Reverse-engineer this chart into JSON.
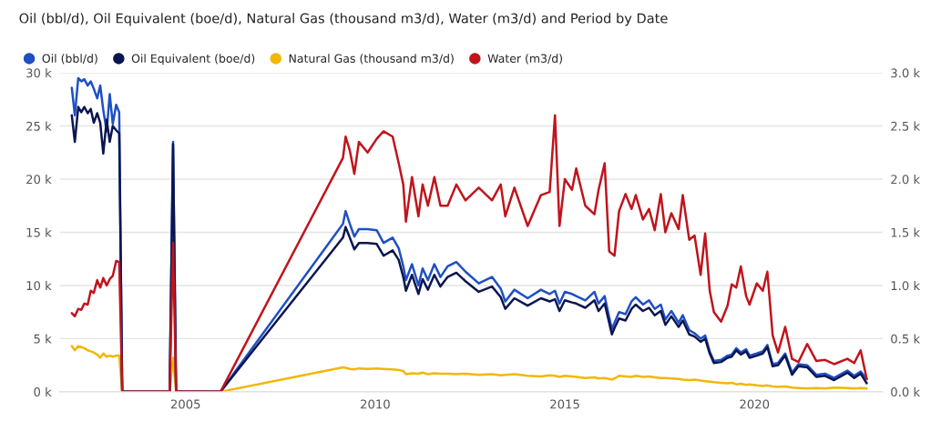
{
  "chart_data": {
    "type": "line",
    "title": "Oil (bbl/d), Oil Equivalent (boe/d), Natural Gas (thousand m3/d), Water (m3/d) and Period by Date",
    "x": [
      2002.0,
      2002.08,
      2002.17,
      2002.25,
      2002.33,
      2002.42,
      2002.5,
      2002.58,
      2002.67,
      2002.75,
      2002.83,
      2002.92,
      2003.0,
      2003.08,
      2003.17,
      2003.25,
      2003.33,
      2004.58,
      2004.67,
      2004.75,
      2005.92,
      2009.15,
      2009.22,
      2009.33,
      2009.45,
      2009.57,
      2009.8,
      2010.04,
      2010.22,
      2010.46,
      2010.62,
      2010.74,
      2010.81,
      2010.97,
      2011.14,
      2011.25,
      2011.39,
      2011.56,
      2011.72,
      2011.91,
      2012.14,
      2012.38,
      2012.73,
      2013.08,
      2013.31,
      2013.43,
      2013.67,
      2014.02,
      2014.37,
      2014.6,
      2014.74,
      2014.86,
      2015.0,
      2015.19,
      2015.3,
      2015.54,
      2015.78,
      2015.89,
      2016.05,
      2016.17,
      2016.24,
      2016.31,
      2016.43,
      2016.6,
      2016.76,
      2016.87,
      2017.06,
      2017.22,
      2017.37,
      2017.53,
      2017.65,
      2017.81,
      2018.0,
      2018.11,
      2018.28,
      2018.42,
      2018.58,
      2018.7,
      2018.82,
      2018.93,
      2019.12,
      2019.29,
      2019.4,
      2019.52,
      2019.64,
      2019.78,
      2019.87,
      2020.06,
      2020.22,
      2020.34,
      2020.48,
      2020.62,
      2020.81,
      2020.99,
      2021.16,
      2021.39,
      2021.63,
      2021.86,
      2022.1,
      2022.45,
      2022.63,
      2022.8,
      2022.96
    ],
    "series": [
      {
        "name": "Oil (bbl/d)",
        "color": "#1f4fc4",
        "values": [
          28600,
          26000,
          29500,
          29200,
          29400,
          28800,
          29200,
          28500,
          27600,
          28800,
          26500,
          24500,
          28000,
          25200,
          27000,
          26300,
          0,
          0,
          23500,
          0,
          0,
          15800,
          17000,
          15800,
          14600,
          15300,
          15300,
          15200,
          14000,
          14500,
          13500,
          11800,
          10500,
          12000,
          10000,
          11600,
          10500,
          12000,
          10800,
          11800,
          12200,
          11300,
          10200,
          10800,
          9700,
          8500,
          9600,
          8800,
          9600,
          9200,
          9500,
          8300,
          9400,
          9200,
          9000,
          8600,
          9400,
          8300,
          9000,
          7000,
          5900,
          6500,
          7500,
          7300,
          8500,
          8900,
          8200,
          8600,
          7800,
          8200,
          6800,
          7600,
          6500,
          7200,
          5800,
          5500,
          5000,
          5300,
          3800,
          2900,
          3000,
          3400,
          3500,
          4100,
          3700,
          4000,
          3400,
          3600,
          3800,
          4400,
          2600,
          2700,
          3600,
          1800,
          2600,
          2500,
          1600,
          1700,
          1300,
          2000,
          1500,
          1900,
          1200
        ]
      },
      {
        "name": "Oil Equivalent (boe/d)",
        "color": "#0b1650",
        "values": [
          26000,
          23500,
          26800,
          26300,
          26800,
          26200,
          26600,
          25300,
          26200,
          25300,
          22400,
          25600,
          23500,
          25000,
          24600,
          24300,
          0,
          0,
          23300,
          0,
          0,
          14500,
          15500,
          14500,
          13400,
          14000,
          14000,
          13900,
          12800,
          13300,
          12400,
          10800,
          9500,
          11000,
          9200,
          10600,
          9600,
          11000,
          9900,
          10800,
          11200,
          10400,
          9400,
          9900,
          8900,
          7800,
          8800,
          8100,
          8800,
          8500,
          8700,
          7600,
          8600,
          8400,
          8300,
          7900,
          8600,
          7600,
          8300,
          6500,
          5400,
          6000,
          6900,
          6700,
          7800,
          8200,
          7600,
          7900,
          7200,
          7600,
          6300,
          7100,
          6100,
          6700,
          5400,
          5200,
          4700,
          5000,
          3600,
          2700,
          2800,
          3200,
          3300,
          3900,
          3500,
          3800,
          3200,
          3400,
          3600,
          4200,
          2400,
          2500,
          3400,
          1600,
          2400,
          2300,
          1400,
          1500,
          1100,
          1800,
          1300,
          1700,
          800
        ]
      },
      {
        "name": "Natural Gas (thousand m3/d)",
        "color": "#f2b705",
        "axis": "y2",
        "values": [
          430,
          390,
          430,
          420,
          410,
          390,
          380,
          370,
          350,
          320,
          360,
          330,
          340,
          330,
          340,
          340,
          0,
          0,
          320,
          0,
          0,
          230,
          225,
          215,
          210,
          220,
          215,
          220,
          215,
          210,
          205,
          195,
          165,
          175,
          170,
          180,
          165,
          175,
          170,
          170,
          165,
          170,
          160,
          165,
          155,
          160,
          165,
          150,
          145,
          155,
          150,
          140,
          150,
          145,
          140,
          130,
          135,
          125,
          130,
          120,
          115,
          125,
          150,
          145,
          140,
          150,
          140,
          145,
          135,
          130,
          130,
          125,
          120,
          115,
          110,
          115,
          105,
          100,
          95,
          90,
          85,
          80,
          85,
          70,
          75,
          65,
          70,
          60,
          55,
          60,
          50,
          45,
          50,
          40,
          35,
          30,
          35,
          30,
          40,
          35,
          30,
          35,
          30
        ]
      },
      {
        "name": "Water (m3/d)",
        "color": "#c0141c",
        "values": [
          7400,
          7100,
          7800,
          7700,
          8300,
          8200,
          9500,
          9300,
          10500,
          9800,
          10700,
          10000,
          10600,
          10900,
          12300,
          12200,
          0,
          0,
          14000,
          0,
          0,
          22000,
          24000,
          22700,
          20500,
          23500,
          22500,
          23800,
          24500,
          24000,
          21500,
          19500,
          16000,
          20200,
          16500,
          19500,
          17500,
          20200,
          17500,
          17500,
          19500,
          18000,
          19200,
          18000,
          19500,
          16500,
          19200,
          15600,
          18500,
          18800,
          26000,
          15600,
          20000,
          19000,
          21000,
          17500,
          16700,
          19000,
          21500,
          13200,
          13000,
          12800,
          17000,
          18600,
          17200,
          18500,
          16200,
          17200,
          15200,
          18600,
          15000,
          16800,
          15300,
          18500,
          14300,
          14700,
          11000,
          14900,
          9500,
          7500,
          6600,
          8100,
          10100,
          9800,
          11800,
          9000,
          8200,
          10200,
          9500,
          11300,
          5300,
          3700,
          6100,
          3100,
          2800,
          4500,
          2900,
          3000,
          2600,
          3100,
          2700,
          3900,
          1200
        ]
      }
    ],
    "xlim": [
      2001.67,
      2023.38
    ],
    "xticks": [
      2005,
      2010,
      2015,
      2020
    ],
    "ylim": [
      0,
      30000
    ],
    "yticks": [
      {
        "value": 0,
        "label": "0 k"
      },
      {
        "value": 5000,
        "label": "5 k"
      },
      {
        "value": 10000,
        "label": "10 k"
      },
      {
        "value": 15000,
        "label": "15 k"
      },
      {
        "value": 20000,
        "label": "20 k"
      },
      {
        "value": 25000,
        "label": "25 k"
      },
      {
        "value": 30000,
        "label": "30 k"
      }
    ],
    "y2lim": [
      0,
      3000
    ],
    "y2ticks": [
      {
        "value": 0,
        "label": "0.0 k"
      },
      {
        "value": 500,
        "label": "0.5 k"
      },
      {
        "value": 1000,
        "label": "1.0 k"
      },
      {
        "value": 1500,
        "label": "1.5 k"
      },
      {
        "value": 2000,
        "label": "2.0 k"
      },
      {
        "value": 2500,
        "label": "2.5 k"
      },
      {
        "value": 3000,
        "label": "3.0 k"
      }
    ],
    "grid": "y",
    "legend": "top left",
    "marker": "none",
    "line_style": "solid"
  }
}
